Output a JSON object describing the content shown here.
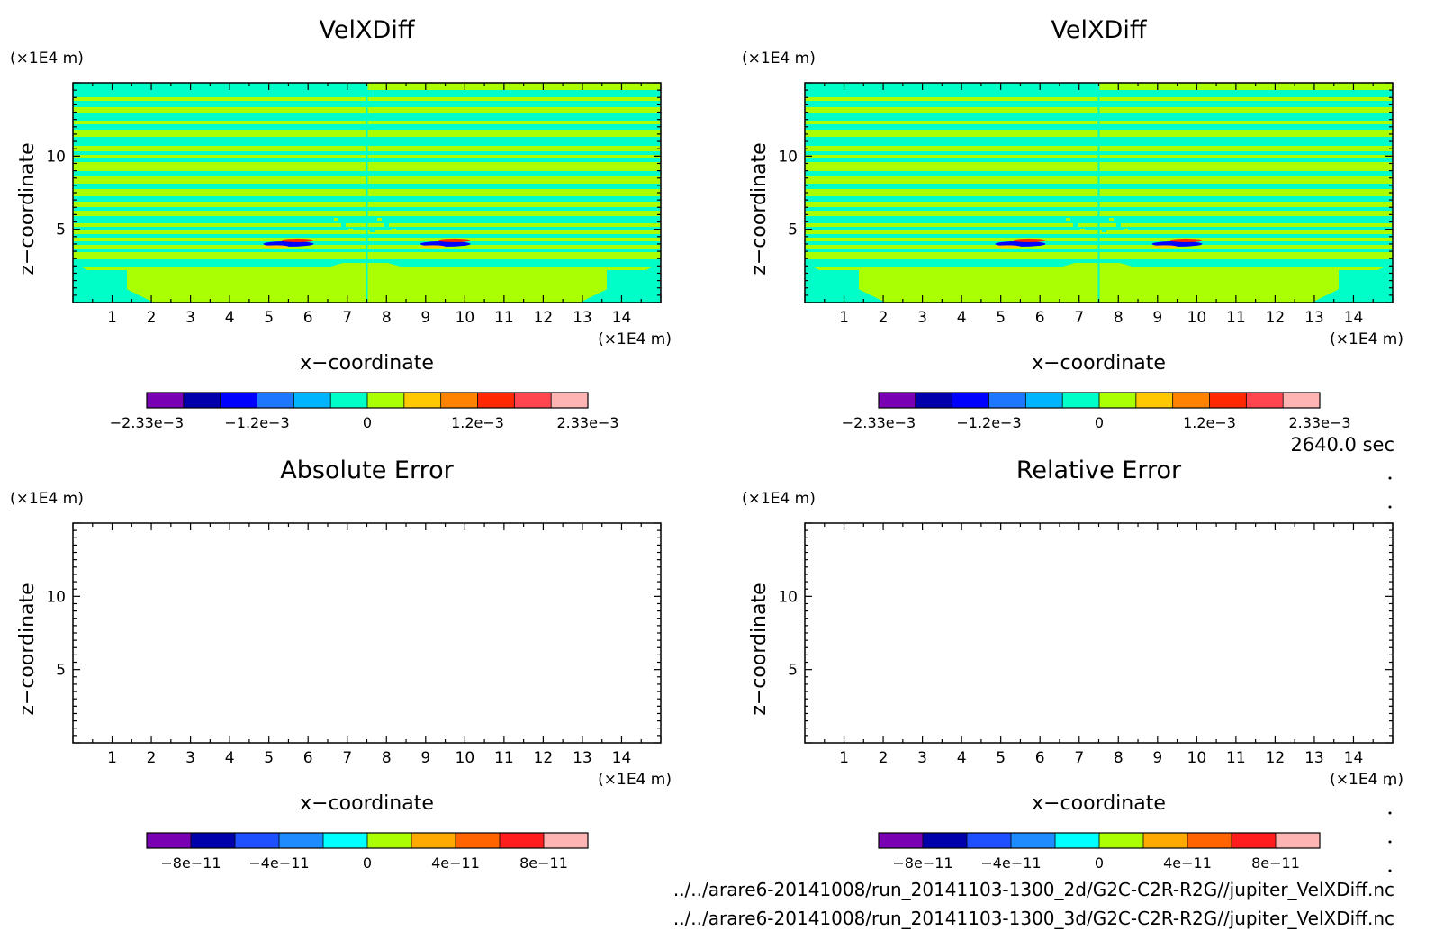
{
  "time_label": "2640.0 sec",
  "files": [
    "../../arare6-20141008/run_20141103-1300_2d/G2C-C2R-R2G//jupiter_VelXDiff.nc",
    "../../arare6-20141008/run_20141103-1300_3d/G2C-C2R-R2G//jupiter_VelXDiff.nc"
  ],
  "chart_data": [
    {
      "type": "heatmap",
      "title": "VelXDiff",
      "xlabel": "x−coordinate",
      "ylabel": "z−coordinate",
      "x_unit": "(×1E4 m)",
      "y_unit": "(×1E4 m)",
      "xlim": [
        0,
        15
      ],
      "ylim": [
        0,
        15
      ],
      "xticks": [
        1,
        2,
        3,
        4,
        5,
        6,
        7,
        8,
        9,
        10,
        11,
        12,
        13,
        14
      ],
      "yticks": [
        5,
        10
      ],
      "field": "filled",
      "colorbar": {
        "labels": [
          "−2.33e−3",
          "−1.2e−3",
          "0",
          "1.2e−3",
          "2.33e−3"
        ],
        "colors": [
          "#7a00b4",
          "#0000aa",
          "#0000ff",
          "#1e78ff",
          "#00b4ff",
          "#00ffc8",
          "#aaff00",
          "#ffc800",
          "#ff8200",
          "#ff2800",
          "#ff4650",
          "#ffb4b4"
        ]
      }
    },
    {
      "type": "heatmap",
      "title": "VelXDiff",
      "xlabel": "x−coordinate",
      "ylabel": "z−coordinate",
      "x_unit": "(×1E4 m)",
      "y_unit": "(×1E4 m)",
      "xlim": [
        0,
        15
      ],
      "ylim": [
        0,
        15
      ],
      "xticks": [
        1,
        2,
        3,
        4,
        5,
        6,
        7,
        8,
        9,
        10,
        11,
        12,
        13,
        14
      ],
      "yticks": [
        5,
        10
      ],
      "field": "filled",
      "colorbar": {
        "labels": [
          "−2.33e−3",
          "−1.2e−3",
          "0",
          "1.2e−3",
          "2.33e−3"
        ],
        "colors": [
          "#7a00b4",
          "#0000aa",
          "#0000ff",
          "#1e78ff",
          "#00b4ff",
          "#00ffc8",
          "#aaff00",
          "#ffc800",
          "#ff8200",
          "#ff2800",
          "#ff4650",
          "#ffb4b4"
        ]
      }
    },
    {
      "type": "heatmap",
      "title": "Absolute Error",
      "xlabel": "x−coordinate",
      "ylabel": "z−coordinate",
      "x_unit": "(×1E4 m)",
      "y_unit": "(×1E4 m)",
      "xlim": [
        0,
        15
      ],
      "ylim": [
        0,
        15
      ],
      "xticks": [
        1,
        2,
        3,
        4,
        5,
        6,
        7,
        8,
        9,
        10,
        11,
        12,
        13,
        14
      ],
      "yticks": [
        5,
        10
      ],
      "field": "empty",
      "colorbar": {
        "labels": [
          "−8e−11",
          "−4e−11",
          "0",
          "4e−11",
          "8e−11"
        ],
        "colors": [
          "#7a00b4",
          "#0000aa",
          "#1e50ff",
          "#1e8cff",
          "#00ffff",
          "#aaff00",
          "#ffaa00",
          "#ff6400",
          "#ff1e1e",
          "#ffb4b4"
        ]
      }
    },
    {
      "type": "heatmap",
      "title": "Relative Error",
      "xlabel": "x−coordinate",
      "ylabel": "z−coordinate",
      "x_unit": "(×1E4 m)",
      "y_unit": "(×1E4 m)",
      "xlim": [
        0,
        15
      ],
      "ylim": [
        0,
        15
      ],
      "xticks": [
        1,
        2,
        3,
        4,
        5,
        6,
        7,
        8,
        9,
        10,
        11,
        12,
        13,
        14
      ],
      "yticks": [
        5,
        10
      ],
      "field": "empty",
      "colorbar": {
        "labels": [
          "−8e−11",
          "−4e−11",
          "0",
          "4e−11",
          "8e−11"
        ],
        "colors": [
          "#7a00b4",
          "#0000aa",
          "#1e50ff",
          "#1e8cff",
          "#00ffff",
          "#aaff00",
          "#ffaa00",
          "#ff6400",
          "#ff1e1e",
          "#ffb4b4"
        ]
      }
    }
  ]
}
